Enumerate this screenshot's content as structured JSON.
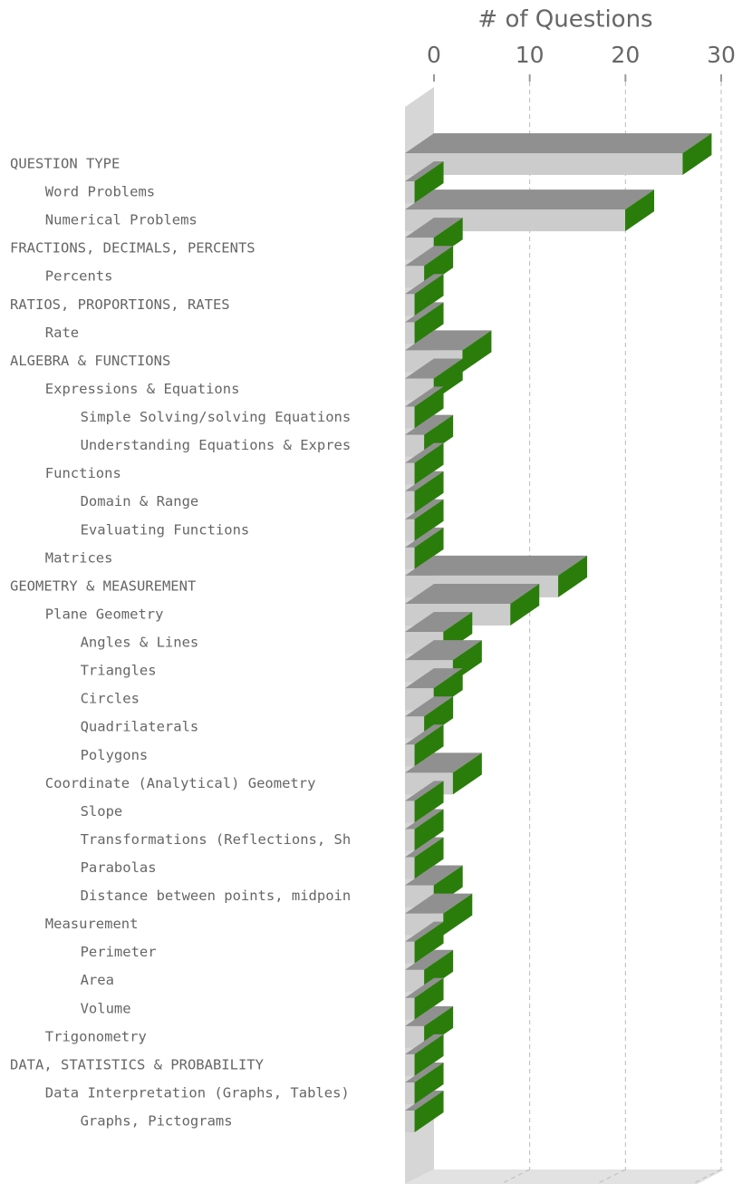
{
  "chart_data": {
    "type": "bar",
    "orientation": "horizontal",
    "title": "# of Questions",
    "categories": [
      "QUESTION TYPE",
      "Word Problems",
      "Numerical Problems",
      "FRACTIONS, DECIMALS, PERCENTS",
      "Percents",
      "RATIOS, PROPORTIONS, RATES",
      "Rate",
      "ALGEBRA & FUNCTIONS",
      "Expressions & Equations",
      "Simple Solving/solving Equations",
      "Understanding Equations & Expres",
      "Functions",
      "Domain & Range",
      "Evaluating Functions",
      "Matrices",
      "GEOMETRY & MEASUREMENT",
      "Plane Geometry",
      "Angles & Lines",
      "Triangles",
      "Circles",
      "Quadrilaterals",
      "Polygons",
      "Coordinate (Analytical) Geometry",
      "Slope",
      "Transformations (Reflections, Sh",
      "Parabolas",
      "Distance between points, midpoin",
      "Measurement",
      "Perimeter",
      "Area",
      "Volume",
      "Trigonometry",
      "DATA, STATISTICS & PROBABILITY",
      "Data Interpretation (Graphs, Tables)",
      "Graphs, Pictograms"
    ],
    "values": [
      29,
      1,
      23,
      3,
      2,
      1,
      1,
      6,
      3,
      1,
      2,
      1,
      1,
      1,
      1,
      16,
      11,
      4,
      5,
      3,
      2,
      1,
      5,
      1,
      1,
      1,
      3,
      4,
      1,
      2,
      1,
      2,
      1,
      1,
      1
    ],
    "colors": {
      "front": "#cccccc",
      "top": "#909090",
      "side": "#2a7d0a"
    },
    "xlim": [
      0,
      30
    ],
    "xticks": [
      0,
      10,
      20,
      30
    ],
    "grid": true
  }
}
